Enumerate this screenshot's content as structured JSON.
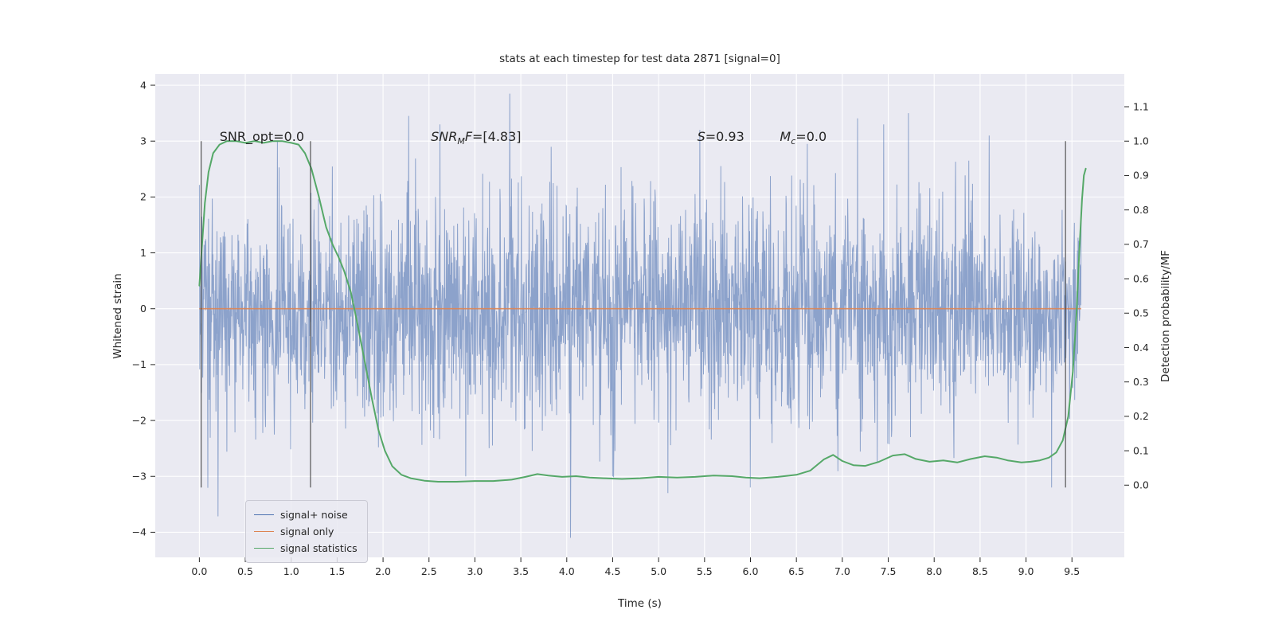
{
  "figure": {
    "background": "#ffffff",
    "axes_background": "#eaeaf2",
    "grid_color": "#ffffff",
    "tick_color": "#262626"
  },
  "chart_data": {
    "type": "line",
    "title": "stats at each timestep for test data 2871 [signal=0]",
    "xlabel": "Time (s)",
    "ylabel_left": "Whitened strain",
    "ylabel_right": "Detection probability/MF",
    "xlim": [
      -0.48,
      10.07
    ],
    "ylim_left": [
      -4.45,
      4.2
    ],
    "ylim_right": [
      -0.21,
      1.195
    ],
    "grid": true,
    "x_ticks": {
      "values": [
        0.0,
        0.5,
        1.0,
        1.5,
        2.0,
        2.5,
        3.0,
        3.5,
        4.0,
        4.5,
        5.0,
        5.5,
        6.0,
        6.5,
        7.0,
        7.5,
        8.0,
        8.5,
        9.0,
        9.5
      ],
      "labels": [
        "0.0",
        "0.5",
        "1.0",
        "1.5",
        "2.0",
        "2.5",
        "3.0",
        "3.5",
        "4.0",
        "4.5",
        "5.0",
        "5.5",
        "6.0",
        "6.5",
        "7.0",
        "7.5",
        "8.0",
        "8.5",
        "9.0",
        "9.5"
      ]
    },
    "y_ticks_left": {
      "values": [
        -4,
        -3,
        -2,
        -1,
        0,
        1,
        2,
        3,
        4
      ],
      "labels": [
        "−4",
        "−3",
        "−2",
        "−1",
        "0",
        "1",
        "2",
        "3",
        "4"
      ]
    },
    "y_ticks_right": {
      "values": [
        0.0,
        0.1,
        0.2,
        0.3,
        0.4,
        0.5,
        0.6,
        0.7,
        0.8,
        0.9,
        1.0,
        1.1
      ],
      "labels": [
        "0.0",
        "0.1",
        "0.2",
        "0.3",
        "0.4",
        "0.5",
        "0.6",
        "0.7",
        "0.8",
        "0.9",
        "1.0",
        "1.1"
      ]
    },
    "series": [
      {
        "name": "signal+ noise",
        "color": "#4c72b0",
        "opacity": 0.6,
        "axis": "left",
        "kind": "gaussian_noise",
        "noise": {
          "n": 2600,
          "t_start": 0.0,
          "t_end": 9.6,
          "mean": 0.0,
          "std": 0.95,
          "seed": 20871,
          "extremes": [
            {
              "t": 0.85,
              "v": 3.0
            },
            {
              "t": 2.28,
              "v": 3.45
            },
            {
              "t": 2.62,
              "v": 3.3
            },
            {
              "t": 2.9,
              "v": -3.0
            },
            {
              "t": 3.38,
              "v": 3.85
            },
            {
              "t": 4.04,
              "v": -4.1
            },
            {
              "t": 4.5,
              "v": -3.0
            },
            {
              "t": 5.1,
              "v": -3.3
            },
            {
              "t": 5.45,
              "v": 3.2
            },
            {
              "t": 6.0,
              "v": -3.2
            },
            {
              "t": 6.62,
              "v": 2.95
            },
            {
              "t": 7.45,
              "v": 3.3
            },
            {
              "t": 7.72,
              "v": 3.5
            },
            {
              "t": 8.6,
              "v": 3.1
            },
            {
              "t": 9.28,
              "v": -3.2
            }
          ]
        }
      },
      {
        "name": "signal only",
        "color": "#dd8452",
        "opacity": 0.9,
        "axis": "left",
        "kind": "constant",
        "value": 0.0,
        "t_start": 0.0,
        "t_end": 9.6
      },
      {
        "name": "signal statistics",
        "color": "#55a868",
        "opacity": 1.0,
        "axis": "right",
        "kind": "line",
        "points": [
          [
            0.0,
            0.58
          ],
          [
            0.03,
            0.7
          ],
          [
            0.06,
            0.82
          ],
          [
            0.1,
            0.91
          ],
          [
            0.15,
            0.965
          ],
          [
            0.22,
            0.99
          ],
          [
            0.3,
            1.0
          ],
          [
            0.4,
            1.0
          ],
          [
            0.5,
            0.995
          ],
          [
            0.6,
            1.0
          ],
          [
            0.7,
            0.995
          ],
          [
            0.8,
            1.0
          ],
          [
            0.9,
            1.0
          ],
          [
            1.0,
            0.995
          ],
          [
            1.08,
            0.99
          ],
          [
            1.15,
            0.965
          ],
          [
            1.22,
            0.92
          ],
          [
            1.3,
            0.84
          ],
          [
            1.38,
            0.75
          ],
          [
            1.45,
            0.7
          ],
          [
            1.52,
            0.66
          ],
          [
            1.58,
            0.62
          ],
          [
            1.65,
            0.56
          ],
          [
            1.72,
            0.47
          ],
          [
            1.8,
            0.36
          ],
          [
            1.88,
            0.25
          ],
          [
            1.95,
            0.16
          ],
          [
            2.02,
            0.1
          ],
          [
            2.1,
            0.055
          ],
          [
            2.2,
            0.03
          ],
          [
            2.3,
            0.02
          ],
          [
            2.45,
            0.013
          ],
          [
            2.6,
            0.01
          ],
          [
            2.8,
            0.01
          ],
          [
            3.0,
            0.012
          ],
          [
            3.2,
            0.012
          ],
          [
            3.4,
            0.016
          ],
          [
            3.55,
            0.024
          ],
          [
            3.68,
            0.032
          ],
          [
            3.8,
            0.028
          ],
          [
            3.95,
            0.024
          ],
          [
            4.1,
            0.026
          ],
          [
            4.25,
            0.022
          ],
          [
            4.4,
            0.02
          ],
          [
            4.6,
            0.018
          ],
          [
            4.8,
            0.02
          ],
          [
            5.0,
            0.024
          ],
          [
            5.2,
            0.022
          ],
          [
            5.4,
            0.024
          ],
          [
            5.6,
            0.028
          ],
          [
            5.8,
            0.026
          ],
          [
            5.95,
            0.022
          ],
          [
            6.1,
            0.02
          ],
          [
            6.3,
            0.024
          ],
          [
            6.5,
            0.03
          ],
          [
            6.65,
            0.042
          ],
          [
            6.8,
            0.075
          ],
          [
            6.9,
            0.088
          ],
          [
            7.0,
            0.07
          ],
          [
            7.12,
            0.058
          ],
          [
            7.25,
            0.056
          ],
          [
            7.4,
            0.068
          ],
          [
            7.55,
            0.086
          ],
          [
            7.68,
            0.09
          ],
          [
            7.8,
            0.076
          ],
          [
            7.95,
            0.068
          ],
          [
            8.1,
            0.072
          ],
          [
            8.25,
            0.066
          ],
          [
            8.4,
            0.076
          ],
          [
            8.55,
            0.084
          ],
          [
            8.68,
            0.08
          ],
          [
            8.8,
            0.072
          ],
          [
            8.95,
            0.066
          ],
          [
            9.05,
            0.068
          ],
          [
            9.15,
            0.072
          ],
          [
            9.25,
            0.08
          ],
          [
            9.33,
            0.095
          ],
          [
            9.4,
            0.13
          ],
          [
            9.46,
            0.2
          ],
          [
            9.51,
            0.33
          ],
          [
            9.55,
            0.5
          ],
          [
            9.58,
            0.68
          ],
          [
            9.61,
            0.83
          ],
          [
            9.63,
            0.9
          ],
          [
            9.65,
            0.92
          ]
        ]
      }
    ],
    "vlines": {
      "color": "#3c3c3c",
      "items": [
        {
          "x": 0.02,
          "y0": -3.2,
          "y1": 3.0
        },
        {
          "x": 1.21,
          "y0": -3.2,
          "y1": 3.0
        },
        {
          "x": 9.43,
          "y0": -3.2,
          "y1": 3.0
        }
      ]
    },
    "annotations": [
      {
        "x": 0.22,
        "y": 3.0,
        "segments": [
          {
            "t": "SNR_opt=0.0",
            "italic": false
          }
        ]
      },
      {
        "x": 2.52,
        "y": 3.0,
        "segments": [
          {
            "t": "SNR",
            "italic": true
          },
          {
            "t": "M",
            "italic": true,
            "sub": true
          },
          {
            "t": "F",
            "italic": true
          },
          {
            "t": "=[4.83]",
            "italic": false
          }
        ]
      },
      {
        "x": 5.42,
        "y": 3.0,
        "segments": [
          {
            "t": "S",
            "italic": true
          },
          {
            "t": "=0.93",
            "italic": false
          }
        ]
      },
      {
        "x": 6.32,
        "y": 3.0,
        "segments": [
          {
            "t": "M",
            "italic": true
          },
          {
            "t": "c",
            "italic": true,
            "sub": true
          },
          {
            "t": "=0.0",
            "italic": false
          }
        ]
      }
    ],
    "legend": {
      "entries": [
        {
          "label": "signal+ noise",
          "color": "#4c72b0"
        },
        {
          "label": "signal only",
          "color": "#dd8452"
        },
        {
          "label": "signal statistics",
          "color": "#55a868"
        }
      ]
    }
  }
}
